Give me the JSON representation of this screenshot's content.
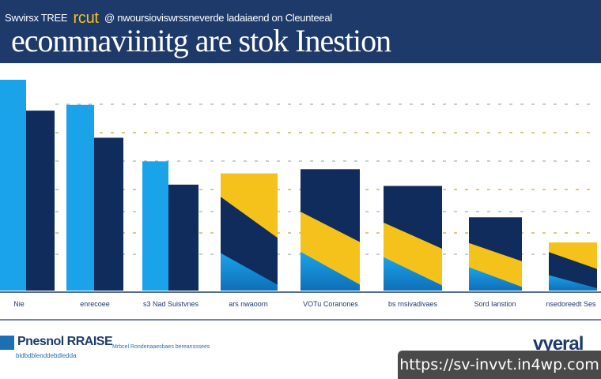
{
  "header": {
    "subtitle_left": "Swvirsx TREE",
    "subtitle_highlight": "rcut",
    "subtitle_right": "@ nwoursioviswrssneverde ladaiaend on Cleunteeal",
    "title": "econnnaviinitg are stok Inestion"
  },
  "chart_data": {
    "type": "bar",
    "title": "econnnaviinitg are stok Inestion",
    "categories": [
      "Nie",
      "enrecoee",
      "s3 Nad Suistvnes",
      "ars nwaoorn",
      "VOTu Coranones",
      "bs rnsivadivaes",
      "Sord Ianstion",
      "nsedoreedt Ses"
    ],
    "values": [
      100,
      88,
      61,
      56,
      58,
      50,
      35,
      23
    ],
    "colors": {
      "light": "#1aa3e8",
      "dark": "#0f2c5c",
      "gold": "#f5c21b"
    },
    "grid": true,
    "legend": "none"
  },
  "footer": {
    "brand": "Pnesnol RRAISE",
    "brand_small": "bldbdblenddebdledda",
    "note": "Mrbcel Rondenaaesbaes bereansssees",
    "mark": "vyeral"
  },
  "url": "https://sv-invvt.in4wp.com"
}
